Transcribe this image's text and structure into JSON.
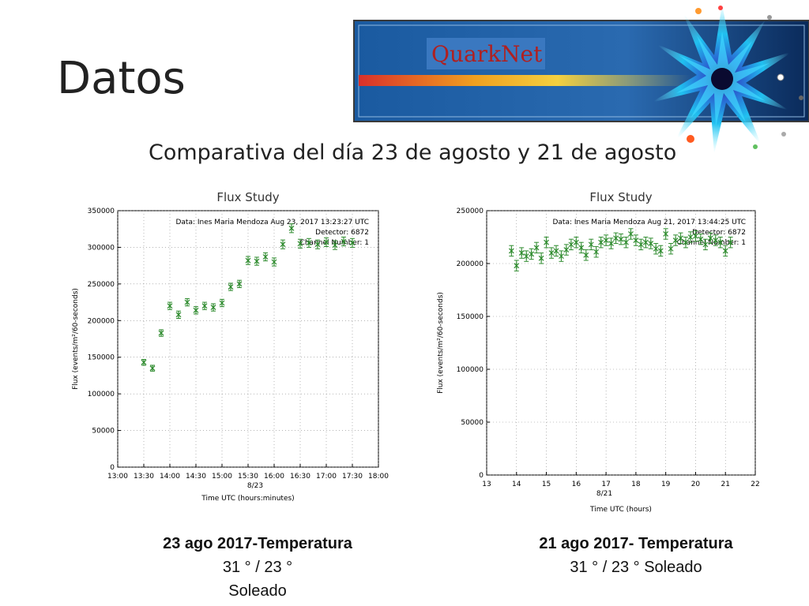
{
  "slide": {
    "title": "Datos",
    "subtitle": "Comparativa del día 23 de agosto y 21 de agosto"
  },
  "logo": {
    "text": "QuarkNet",
    "icon": "starburst-icon"
  },
  "captions": {
    "left": {
      "heading": "23 ago 2017-Temperatura",
      "line1": "31 ° / 23 °",
      "line2": "Soleado"
    },
    "right": {
      "heading": "21 ago 2017- Temperatura",
      "line1": "31 ° / 23 ° Soleado"
    }
  },
  "colors": {
    "points": "#2e8b2e",
    "errorbars": "#2e8b2e",
    "axis": "#000000",
    "title_text": "#333333"
  },
  "chart_data": [
    {
      "type": "scatter",
      "title": "Flux Study",
      "xlabel": "Time UTC (hours:minutes)",
      "ylabel": "Flux (events/m²/60-seconds)",
      "date_label": "8/23",
      "annotation": [
        "Data: Ines Maria Mendoza  Aug 23, 2017 13:23:27 UTC",
        "Detector: 6872",
        "Channel Number: 1"
      ],
      "xlim": [
        "13:00",
        "18:00"
      ],
      "ylim": [
        0,
        350000
      ],
      "x_ticks": [
        "13:00",
        "13:30",
        "14:00",
        "14:30",
        "15:00",
        "15:30",
        "16:00",
        "16:30",
        "17:00",
        "17:30",
        "18:00"
      ],
      "y_ticks": [
        0,
        50000,
        100000,
        150000,
        200000,
        250000,
        300000,
        350000
      ],
      "grid": true,
      "series": [
        {
          "x": [
            "13:30",
            "13:40",
            "13:50",
            "14:00",
            "14:10",
            "14:20",
            "14:30",
            "14:40",
            "14:50",
            "15:00",
            "15:10",
            "15:20",
            "15:30",
            "15:40",
            "15:50",
            "16:00",
            "16:10",
            "16:20",
            "16:30",
            "16:40",
            "16:50",
            "17:00",
            "17:10",
            "17:20",
            "17:30"
          ],
          "y": [
            143000,
            135000,
            183000,
            220000,
            208000,
            225000,
            214000,
            220000,
            218000,
            224000,
            246000,
            250000,
            282000,
            281000,
            287000,
            280000,
            304000,
            326000,
            305000,
            306000,
            304000,
            307000,
            303000,
            308000,
            306000
          ],
          "error": [
            4000,
            4000,
            4500,
            5000,
            5000,
            5000,
            5000,
            5000,
            5000,
            5000,
            5000,
            5000,
            5500,
            5500,
            5500,
            5500,
            6000,
            6000,
            6000,
            6000,
            6000,
            6000,
            6000,
            6000,
            6000
          ]
        }
      ]
    },
    {
      "type": "scatter",
      "title": "Flux Study",
      "xlabel": "Time UTC (hours)",
      "ylabel": "Flux (events/m²/60-seconds)",
      "date_label": "8/21",
      "annotation": [
        "Data: Ines Maria Mendoza  Aug 21, 2017 13:44:25 UTC",
        "Detector: 6872",
        "Channel Number: 1"
      ],
      "xlim": [
        13,
        22
      ],
      "ylim": [
        0,
        250000
      ],
      "x_ticks": [
        13,
        14,
        15,
        16,
        17,
        18,
        19,
        20,
        21,
        22
      ],
      "y_ticks": [
        0,
        50000,
        100000,
        150000,
        200000,
        250000
      ],
      "grid": true,
      "series": [
        {
          "x": [
            13.83,
            14.0,
            14.17,
            14.33,
            14.5,
            14.67,
            14.83,
            15.0,
            15.17,
            15.33,
            15.5,
            15.67,
            15.83,
            16.0,
            16.17,
            16.33,
            16.5,
            16.67,
            16.83,
            17.0,
            17.17,
            17.33,
            17.5,
            17.67,
            17.83,
            18.0,
            18.17,
            18.33,
            18.5,
            18.67,
            18.83,
            19.0,
            19.17,
            19.33,
            19.5,
            19.67,
            19.83,
            20.0,
            20.17,
            20.33,
            20.5,
            20.67,
            20.83,
            21.0,
            21.17
          ],
          "y": [
            212000,
            198000,
            210000,
            207000,
            209000,
            215000,
            205000,
            220000,
            210000,
            212000,
            207000,
            213000,
            218000,
            220000,
            215000,
            208000,
            218000,
            211000,
            220000,
            222000,
            219000,
            224000,
            223000,
            220000,
            228000,
            222000,
            218000,
            220000,
            219000,
            214000,
            212000,
            228000,
            214000,
            222000,
            224000,
            220000,
            225000,
            226000,
            223000,
            218000,
            224000,
            222000,
            220000,
            212000,
            220000
          ],
          "error": [
            5000,
            5000,
            5000,
            5000,
            5000,
            5000,
            5000,
            5000,
            5000,
            5000,
            5000,
            5000,
            5000,
            5000,
            5000,
            5000,
            5000,
            5000,
            5000,
            5000,
            5000,
            5000,
            5000,
            5000,
            5000,
            5000,
            5000,
            5000,
            5000,
            5000,
            5000,
            5000,
            5000,
            5000,
            5000,
            5000,
            5000,
            5000,
            5000,
            5000,
            5000,
            5000,
            5000,
            5000,
            5000
          ]
        }
      ]
    }
  ]
}
